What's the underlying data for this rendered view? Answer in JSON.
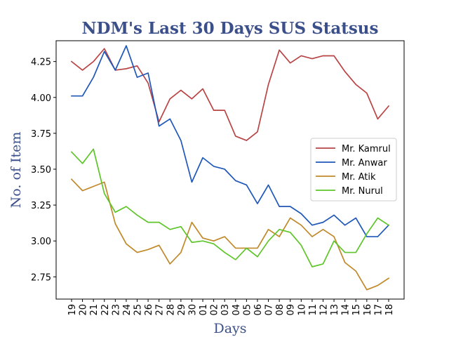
{
  "chart_data": {
    "type": "line",
    "title": "NDM's Last 30 Days SUS Statsus",
    "xlabel": "Days",
    "ylabel": "No. of Item",
    "x": [
      "19",
      "20",
      "21",
      "22",
      "23",
      "24",
      "25",
      "26",
      "27",
      "28",
      "29",
      "30",
      "01",
      "02",
      "03",
      "04",
      "05",
      "06",
      "07",
      "08",
      "09",
      "10",
      "11",
      "12",
      "13",
      "14",
      "15",
      "16",
      "17",
      "18"
    ],
    "yticks": [
      "2.75",
      "3.00",
      "3.25",
      "3.50",
      "3.75",
      "4.00",
      "4.25"
    ],
    "ylim": [
      2.595,
      4.395
    ],
    "grid": false,
    "legend": "center-right",
    "series": [
      {
        "name": "Mr. Kamrul",
        "color": "#b94445",
        "values": [
          4.25,
          4.19,
          4.25,
          4.34,
          4.19,
          4.2,
          4.22,
          4.1,
          3.83,
          3.99,
          4.05,
          3.99,
          4.06,
          3.91,
          3.91,
          3.73,
          3.7,
          3.76,
          4.09,
          4.33,
          4.24,
          4.29,
          4.27,
          4.29,
          4.29,
          4.18,
          4.09,
          4.03,
          3.85,
          3.94
        ]
      },
      {
        "name": "Mr. Anwar",
        "color": "#1f57b9",
        "values": [
          4.01,
          4.01,
          4.14,
          4.32,
          4.19,
          4.36,
          4.14,
          4.17,
          3.8,
          3.85,
          3.7,
          3.41,
          3.58,
          3.52,
          3.5,
          3.42,
          3.39,
          3.26,
          3.39,
          3.24,
          3.24,
          3.19,
          3.11,
          3.13,
          3.18,
          3.11,
          3.16,
          3.03,
          3.03,
          3.11
        ]
      },
      {
        "name": "Mr. Atik",
        "color": "#c0892a",
        "values": [
          3.43,
          3.35,
          3.38,
          3.41,
          3.12,
          2.98,
          2.92,
          2.94,
          2.97,
          2.84,
          2.92,
          3.13,
          3.02,
          3.0,
          3.03,
          2.95,
          2.95,
          2.95,
          3.08,
          3.03,
          3.16,
          3.11,
          3.03,
          3.08,
          3.03,
          2.85,
          2.79,
          2.66,
          2.69,
          2.74
        ]
      },
      {
        "name": "Mr. Nurul",
        "color": "#5ec52a",
        "values": [
          3.62,
          3.54,
          3.64,
          3.33,
          3.2,
          3.24,
          3.18,
          3.13,
          3.13,
          3.08,
          3.1,
          2.99,
          3.0,
          2.98,
          2.92,
          2.87,
          2.95,
          2.89,
          3.0,
          3.08,
          3.06,
          2.97,
          2.82,
          2.84,
          3.0,
          2.92,
          2.92,
          3.05,
          3.16,
          3.11
        ]
      }
    ]
  }
}
